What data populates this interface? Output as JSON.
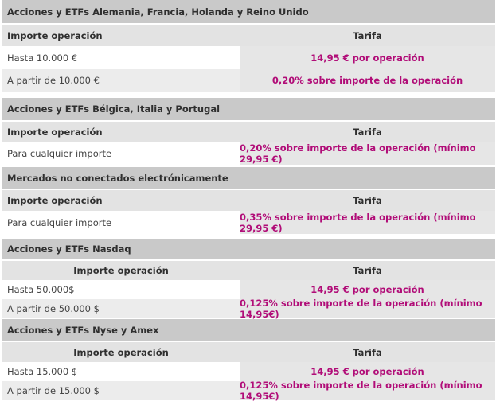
{
  "sections": [
    {
      "title": "Acciones y ETFs Alemania, Francia, Holanda y Reino Unido",
      "col1": "Importe operación",
      "col2": "Tarifa",
      "rows": [
        {
          "importe": "Hasta 10.000 €",
          "tarifa": "14,95 € por operación"
        },
        {
          "importe": "A partir de 10.000 €",
          "tarifa": "0,20% sobre importe de la operación"
        }
      ]
    },
    {
      "title": "Acciones y ETFs Bélgica, Italia y Portugal",
      "col1": "Importe operación",
      "col2": "Tarifa",
      "rows": [
        {
          "importe": "Para cualquier importe",
          "tarifa": "0,20% sobre importe de la operación (mínimo 29,95 €)"
        }
      ]
    },
    {
      "title": "Mercados no conectados electrónicamente",
      "col1": "Importe operación",
      "col2": "Tarifa",
      "rows": [
        {
          "importe": "Para cualquier importe",
          "tarifa": "0,35% sobre importe de la operación (mínimo 29,95 €)"
        }
      ]
    },
    {
      "title": "Acciones y ETFs Nasdaq",
      "col1": "Importe operación",
      "col2": "Tarifa",
      "rows": [
        {
          "importe": "Hasta 50.000$",
          "tarifa": "14,95 € por operación"
        },
        {
          "importe": "A partir de 50.000 $",
          "tarifa": "0,125% sobre importe de la operación (mínimo 14,95€)"
        }
      ]
    },
    {
      "title": "Acciones y ETFs Nyse y Amex",
      "col1": "Importe operación",
      "col2": "Tarifa",
      "rows": [
        {
          "importe": "Hasta 15.000 $",
          "tarifa": "14,95 € por operación"
        },
        {
          "importe": "A partir de 15.000 $",
          "tarifa": "0,125% sobre importe de la operación (mínimo 14,95€)"
        }
      ]
    }
  ]
}
